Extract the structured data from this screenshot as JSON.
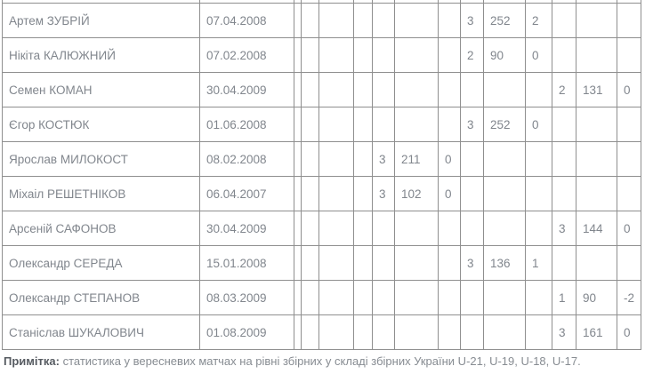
{
  "table": {
    "rows": [
      {
        "name": "Артем ЗУБРІЙ",
        "birth_date": "07.04.2008",
        "stats": [
          "",
          "",
          "",
          "",
          "",
          "",
          "",
          "3",
          "252",
          "2",
          "",
          "",
          ""
        ]
      },
      {
        "name": "Нікіта КАЛЮЖНИЙ",
        "birth_date": "07.02.2008",
        "stats": [
          "",
          "",
          "",
          "",
          "",
          "",
          "",
          "2",
          "90",
          "0",
          "",
          "",
          ""
        ]
      },
      {
        "name": "Семен КОМАН",
        "birth_date": "30.04.2009",
        "stats": [
          "",
          "",
          "",
          "",
          "",
          "",
          "",
          "",
          "",
          "",
          "2",
          "131",
          "0"
        ]
      },
      {
        "name": "Єгор КОСТЮК",
        "birth_date": "01.06.2008",
        "stats": [
          "",
          "",
          "",
          "",
          "",
          "",
          "",
          "3",
          "252",
          "0",
          "",
          "",
          ""
        ]
      },
      {
        "name": "Ярослав МИЛОКОСТ",
        "birth_date": "08.02.2008",
        "stats": [
          "",
          "",
          "",
          "",
          "3",
          "211",
          "0",
          "",
          "",
          "",
          "",
          "",
          ""
        ]
      },
      {
        "name": "Міхаіл РЕШЕТНІКОВ",
        "birth_date": "06.04.2007",
        "stats": [
          "",
          "",
          "",
          "",
          "3",
          "102",
          "0",
          "",
          "",
          "",
          "",
          "",
          ""
        ]
      },
      {
        "name": "Арсеній САФОНОВ",
        "birth_date": "30.04.2009",
        "stats": [
          "",
          "",
          "",
          "",
          "",
          "",
          "",
          "",
          "",
          "",
          "3",
          "144",
          "0"
        ]
      },
      {
        "name": "Олександр СЕРЕДА",
        "birth_date": "15.01.2008",
        "stats": [
          "",
          "",
          "",
          "",
          "",
          "",
          "",
          "3",
          "136",
          "1",
          "",
          "",
          ""
        ]
      },
      {
        "name": "Олександр СТЕПАНОВ",
        "birth_date": "08.03.2009",
        "stats": [
          "",
          "",
          "",
          "",
          "",
          "",
          "",
          "",
          "",
          "",
          "1",
          "90",
          "-2"
        ]
      },
      {
        "name": "Станіслав ШУКАЛОВИЧ",
        "birth_date": "01.08.2009",
        "stats": [
          "",
          "",
          "",
          "",
          "",
          "",
          "",
          "",
          "",
          "",
          "3",
          "161",
          "0"
        ]
      }
    ]
  },
  "note": {
    "label": "Примітка:",
    "text": "статистика у вересневих матчах на рівні збірних у складі збірних України U-21, U-19, U-18, U-17."
  }
}
